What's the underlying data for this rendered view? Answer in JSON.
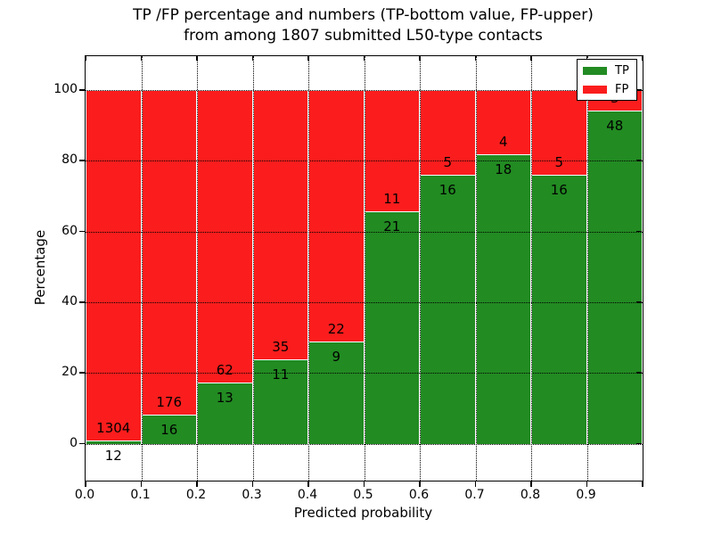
{
  "title": {
    "line1": "TP /FP percentage and numbers (TP-bottom value, FP-upper)",
    "line2": "from among 1807 submitted L50-type contacts"
  },
  "axes": {
    "xlabel": "Predicted probability",
    "ylabel": "Percentage",
    "xtick_labels": [
      "0.0",
      "0.1",
      "0.2",
      "0.3",
      "0.4",
      "0.5",
      "0.6",
      "0.7",
      "0.8",
      "0.9"
    ],
    "ytick_labels": [
      "0",
      "20",
      "40",
      "60",
      "80",
      "100"
    ],
    "ytick_values": [
      0,
      20,
      40,
      60,
      80,
      100
    ],
    "ylim": [
      -10.4,
      109.6
    ],
    "grid": "dotted"
  },
  "legend": {
    "position": "upper-right",
    "items": [
      {
        "label": "TP",
        "color": "#228b22"
      },
      {
        "label": "FP",
        "color": "#fb1d1d"
      }
    ]
  },
  "chart_data": {
    "type": "bar",
    "stacked": true,
    "normalized_to": "percent of bin total",
    "title": "TP /FP percentage and numbers (TP-bottom value, FP-upper) from among 1807 submitted L50-type contacts",
    "xlabel": "Predicted probability",
    "ylabel": "Percentage",
    "total_contacts": 1807,
    "bin_edges": [
      0.0,
      0.1,
      0.2,
      0.3,
      0.4,
      0.5,
      0.6,
      0.7,
      0.8,
      0.9,
      1.0
    ],
    "categories": [
      "0.0-0.1",
      "0.1-0.2",
      "0.2-0.3",
      "0.3-0.4",
      "0.4-0.5",
      "0.5-0.6",
      "0.6-0.7",
      "0.7-0.8",
      "0.8-0.9",
      "0.9-1.0"
    ],
    "series": [
      {
        "name": "TP",
        "color": "#228b22",
        "counts": [
          12,
          16,
          13,
          11,
          9,
          21,
          16,
          18,
          16,
          48
        ]
      },
      {
        "name": "FP",
        "color": "#fb1d1d",
        "counts": [
          1304,
          176,
          62,
          35,
          22,
          11,
          5,
          4,
          5,
          3
        ]
      }
    ],
    "tp_percent": [
      0.91,
      8.33,
      17.33,
      23.91,
      29.03,
      65.63,
      76.19,
      81.82,
      76.19,
      94.12
    ],
    "ylim": [
      -10.4,
      109.6
    ]
  }
}
